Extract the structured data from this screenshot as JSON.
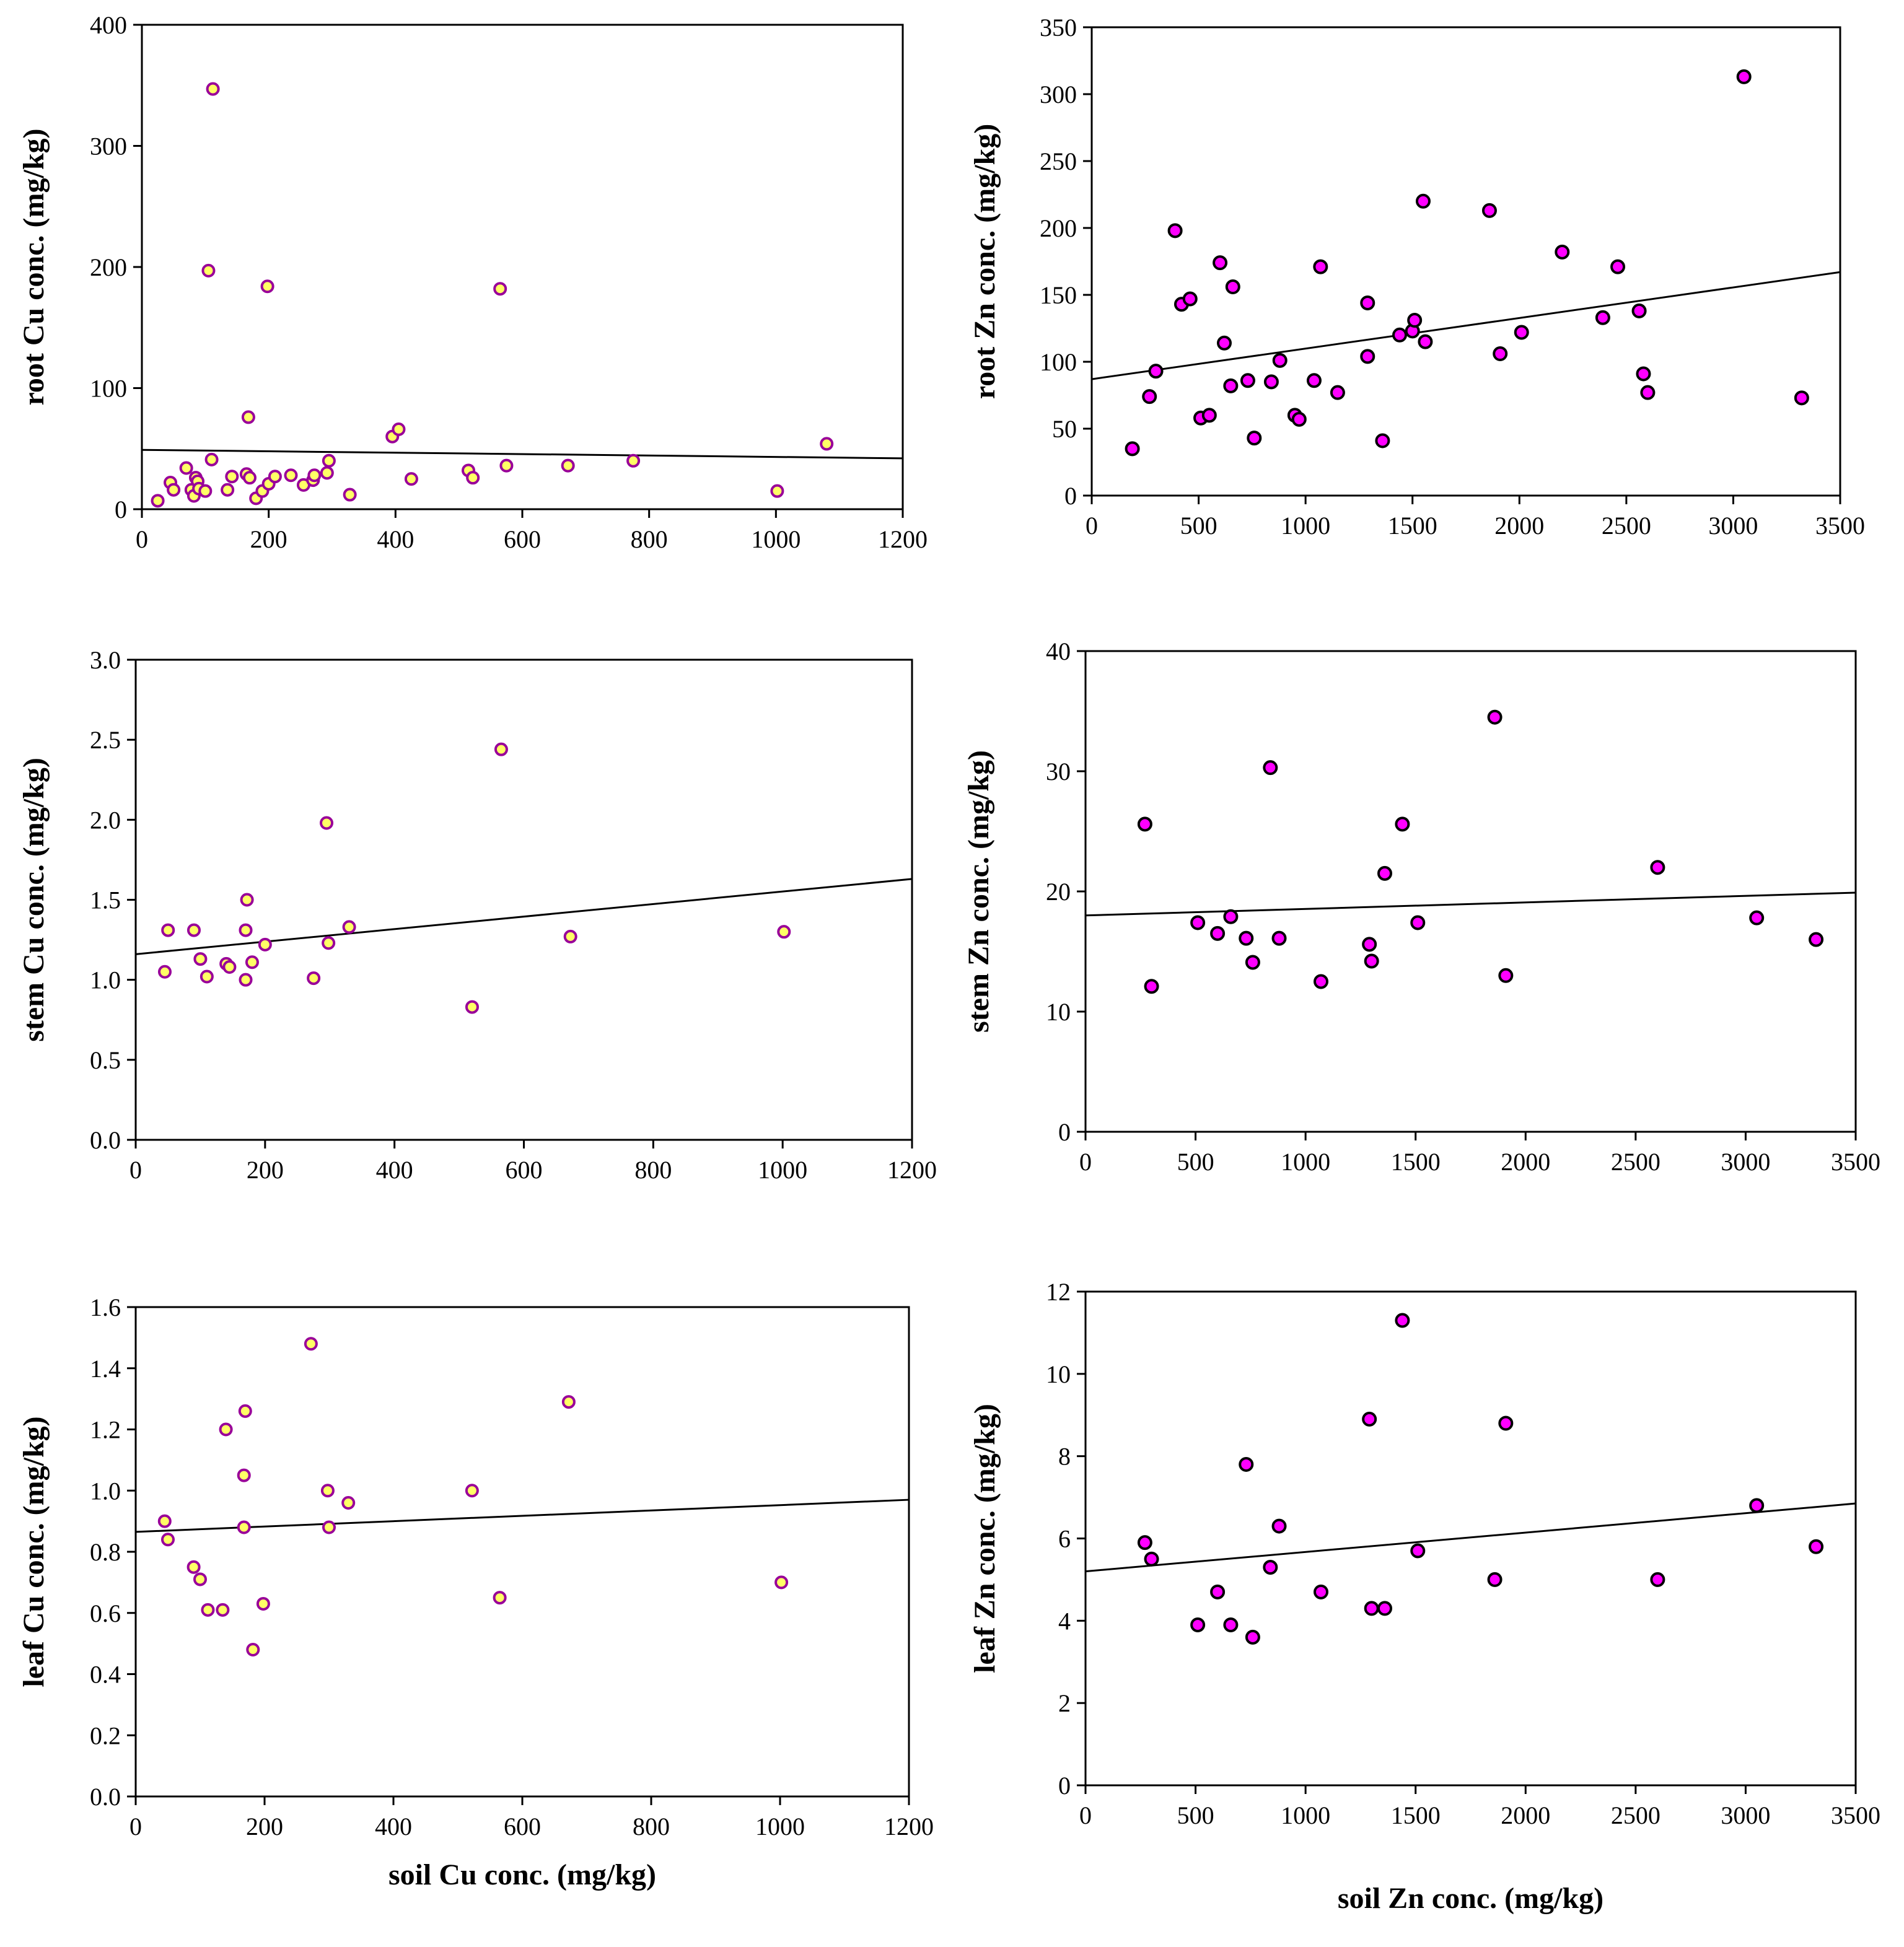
{
  "colors": {
    "cu_marker_fill": "#ffff66",
    "cu_marker_stroke": "#990099",
    "zn_marker_fill": "#ff00ff",
    "zn_marker_stroke": "#000000",
    "axes": "#000000"
  },
  "chart_data": [
    {
      "id": "root-cu",
      "type": "scatter",
      "ylabel": "root Cu conc. (mg/kg)",
      "xlabel": "",
      "xlim": [
        0,
        1200
      ],
      "ylim": [
        0,
        400
      ],
      "xticks": [
        "0",
        "200",
        "400",
        "600",
        "800",
        "1000",
        "1200"
      ],
      "yticks": [
        "0",
        "100",
        "200",
        "300",
        "400"
      ],
      "marker": "cu",
      "trend": [
        [
          0,
          49
        ],
        [
          1200,
          42
        ]
      ],
      "points": [
        [
          25,
          7
        ],
        [
          45,
          22
        ],
        [
          50,
          16
        ],
        [
          70,
          34
        ],
        [
          78,
          16
        ],
        [
          82,
          11
        ],
        [
          85,
          26
        ],
        [
          88,
          23
        ],
        [
          90,
          17
        ],
        [
          100,
          15
        ],
        [
          105,
          197
        ],
        [
          110,
          41
        ],
        [
          112,
          347
        ],
        [
          135,
          16
        ],
        [
          142,
          27
        ],
        [
          165,
          29
        ],
        [
          168,
          76
        ],
        [
          170,
          26
        ],
        [
          180,
          9
        ],
        [
          190,
          15
        ],
        [
          198,
          184
        ],
        [
          200,
          21
        ],
        [
          210,
          27
        ],
        [
          235,
          28
        ],
        [
          255,
          20
        ],
        [
          270,
          24
        ],
        [
          272,
          28
        ],
        [
          292,
          30
        ],
        [
          295,
          40
        ],
        [
          328,
          12
        ],
        [
          395,
          60
        ],
        [
          405,
          66
        ],
        [
          425,
          25
        ],
        [
          515,
          32
        ],
        [
          522,
          26
        ],
        [
          565,
          182
        ],
        [
          575,
          36
        ],
        [
          672,
          36
        ],
        [
          775,
          40
        ],
        [
          1002,
          15
        ],
        [
          1080,
          54
        ]
      ]
    },
    {
      "id": "root-zn",
      "type": "scatter",
      "ylabel": "root Zn conc. (mg/kg)",
      "xlabel": "",
      "xlim": [
        0,
        3500
      ],
      "ylim": [
        0,
        350
      ],
      "xticks": [
        "0",
        "500",
        "1000",
        "1500",
        "2000",
        "2500",
        "3000",
        "3500"
      ],
      "yticks": [
        "0",
        "50",
        "100",
        "150",
        "200",
        "250",
        "300",
        "350"
      ],
      "marker": "zn",
      "trend": [
        [
          0,
          87
        ],
        [
          3500,
          167
        ]
      ],
      "points": [
        [
          190,
          35
        ],
        [
          270,
          74
        ],
        [
          300,
          93
        ],
        [
          390,
          198
        ],
        [
          420,
          143
        ],
        [
          460,
          147
        ],
        [
          510,
          58
        ],
        [
          550,
          60
        ],
        [
          600,
          174
        ],
        [
          620,
          114
        ],
        [
          650,
          82
        ],
        [
          660,
          156
        ],
        [
          730,
          86
        ],
        [
          760,
          43
        ],
        [
          840,
          85
        ],
        [
          880,
          101
        ],
        [
          950,
          60
        ],
        [
          970,
          57
        ],
        [
          1040,
          86
        ],
        [
          1070,
          171
        ],
        [
          1150,
          77
        ],
        [
          1290,
          104
        ],
        [
          1290,
          144
        ],
        [
          1360,
          41
        ],
        [
          1440,
          120
        ],
        [
          1500,
          123
        ],
        [
          1510,
          131
        ],
        [
          1550,
          220
        ],
        [
          1560,
          115
        ],
        [
          1860,
          213
        ],
        [
          1910,
          106
        ],
        [
          2010,
          122
        ],
        [
          2200,
          182
        ],
        [
          2390,
          133
        ],
        [
          2460,
          171
        ],
        [
          2560,
          138
        ],
        [
          2580,
          91
        ],
        [
          2600,
          77
        ],
        [
          3050,
          313
        ],
        [
          3320,
          73
        ]
      ]
    },
    {
      "id": "stem-cu",
      "type": "scatter",
      "ylabel": "stem Cu conc. (mg/kg)",
      "xlabel": "",
      "xlim": [
        0,
        1200
      ],
      "ylim": [
        0,
        3
      ],
      "xticks": [
        "0",
        "200",
        "400",
        "600",
        "800",
        "1000",
        "1200"
      ],
      "yticks": [
        "0.0",
        "0.5",
        "1.0",
        "1.5",
        "2.0",
        "2.5",
        "3.0"
      ],
      "marker": "cu",
      "trend": [
        [
          0,
          1.16
        ],
        [
          1200,
          1.63
        ]
      ],
      "points": [
        [
          45,
          1.05
        ],
        [
          50,
          1.31
        ],
        [
          90,
          1.31
        ],
        [
          100,
          1.13
        ],
        [
          110,
          1.02
        ],
        [
          140,
          1.1
        ],
        [
          145,
          1.08
        ],
        [
          170,
          1.0
        ],
        [
          170,
          1.31
        ],
        [
          172,
          1.5
        ],
        [
          180,
          1.11
        ],
        [
          200,
          1.22
        ],
        [
          275,
          1.01
        ],
        [
          295,
          1.98
        ],
        [
          298,
          1.23
        ],
        [
          330,
          1.33
        ],
        [
          520,
          0.83
        ],
        [
          565,
          2.44
        ],
        [
          672,
          1.27
        ],
        [
          1002,
          1.3
        ]
      ]
    },
    {
      "id": "stem-zn",
      "type": "scatter",
      "ylabel": "stem Zn conc. (mg/kg)",
      "xlabel": "",
      "xlim": [
        0,
        3500
      ],
      "ylim": [
        0,
        40
      ],
      "xticks": [
        "0",
        "500",
        "1000",
        "1500",
        "2000",
        "2500",
        "3000",
        "3500"
      ],
      "yticks": [
        "0",
        "10",
        "20",
        "30",
        "40"
      ],
      "marker": "zn",
      "trend": [
        [
          0,
          18
        ],
        [
          3500,
          19.9
        ]
      ],
      "points": [
        [
          270,
          25.6
        ],
        [
          300,
          12.1
        ],
        [
          510,
          17.4
        ],
        [
          600,
          16.5
        ],
        [
          660,
          17.9
        ],
        [
          730,
          16.1
        ],
        [
          760,
          14.1
        ],
        [
          840,
          30.3
        ],
        [
          880,
          16.1
        ],
        [
          1070,
          12.5
        ],
        [
          1290,
          15.6
        ],
        [
          1300,
          14.2
        ],
        [
          1360,
          21.5
        ],
        [
          1440,
          25.6
        ],
        [
          1510,
          17.4
        ],
        [
          1860,
          34.5
        ],
        [
          1910,
          13.0
        ],
        [
          2600,
          22.0
        ],
        [
          3050,
          17.8
        ],
        [
          3320,
          16.0
        ]
      ]
    },
    {
      "id": "leaf-cu",
      "type": "scatter",
      "ylabel": "leaf Cu conc. (mg/kg)",
      "xlabel": "soil Cu conc. (mg/kg)",
      "xlim": [
        0,
        1200
      ],
      "ylim": [
        0,
        1.6
      ],
      "xticks": [
        "0",
        "200",
        "400",
        "600",
        "800",
        "1000",
        "1200"
      ],
      "yticks": [
        "0.0",
        "0.2",
        "0.4",
        "0.6",
        "0.8",
        "1.0",
        "1.2",
        "1.4",
        "1.6"
      ],
      "marker": "cu",
      "trend": [
        [
          0,
          0.865
        ],
        [
          1200,
          0.97
        ]
      ],
      "points": [
        [
          45,
          0.9
        ],
        [
          50,
          0.84
        ],
        [
          90,
          0.75
        ],
        [
          100,
          0.71
        ],
        [
          112,
          0.61
        ],
        [
          135,
          0.61
        ],
        [
          140,
          1.2
        ],
        [
          168,
          0.88
        ],
        [
          170,
          1.26
        ],
        [
          168,
          1.05
        ],
        [
          182,
          0.48
        ],
        [
          198,
          0.63
        ],
        [
          272,
          1.48
        ],
        [
          298,
          1.0
        ],
        [
          300,
          0.88
        ],
        [
          330,
          0.96
        ],
        [
          522,
          1.0
        ],
        [
          565,
          0.65
        ],
        [
          672,
          1.29
        ],
        [
          1002,
          0.7
        ]
      ]
    },
    {
      "id": "leaf-zn",
      "type": "scatter",
      "ylabel": "leaf Zn conc. (mg/kg)",
      "xlabel": "soil Zn conc. (mg/kg)",
      "xlim": [
        0,
        3500
      ],
      "ylim": [
        0,
        12
      ],
      "xticks": [
        "0",
        "500",
        "1000",
        "1500",
        "2000",
        "2500",
        "3000",
        "3500"
      ],
      "yticks": [
        "0",
        "2",
        "4",
        "6",
        "8",
        "10",
        "12"
      ],
      "marker": "zn",
      "trend": [
        [
          0,
          5.2
        ],
        [
          3500,
          6.85
        ]
      ],
      "points": [
        [
          270,
          5.9
        ],
        [
          300,
          5.5
        ],
        [
          510,
          3.9
        ],
        [
          600,
          4.7
        ],
        [
          660,
          3.9
        ],
        [
          730,
          7.8
        ],
        [
          760,
          3.6
        ],
        [
          840,
          5.3
        ],
        [
          880,
          6.3
        ],
        [
          1070,
          4.7
        ],
        [
          1290,
          8.9
        ],
        [
          1300,
          4.3
        ],
        [
          1360,
          4.3
        ],
        [
          1440,
          11.3
        ],
        [
          1510,
          5.7
        ],
        [
          1860,
          5.0
        ],
        [
          1910,
          8.8
        ],
        [
          2600,
          5.0
        ],
        [
          3050,
          6.8
        ],
        [
          3320,
          5.8
        ]
      ]
    }
  ]
}
